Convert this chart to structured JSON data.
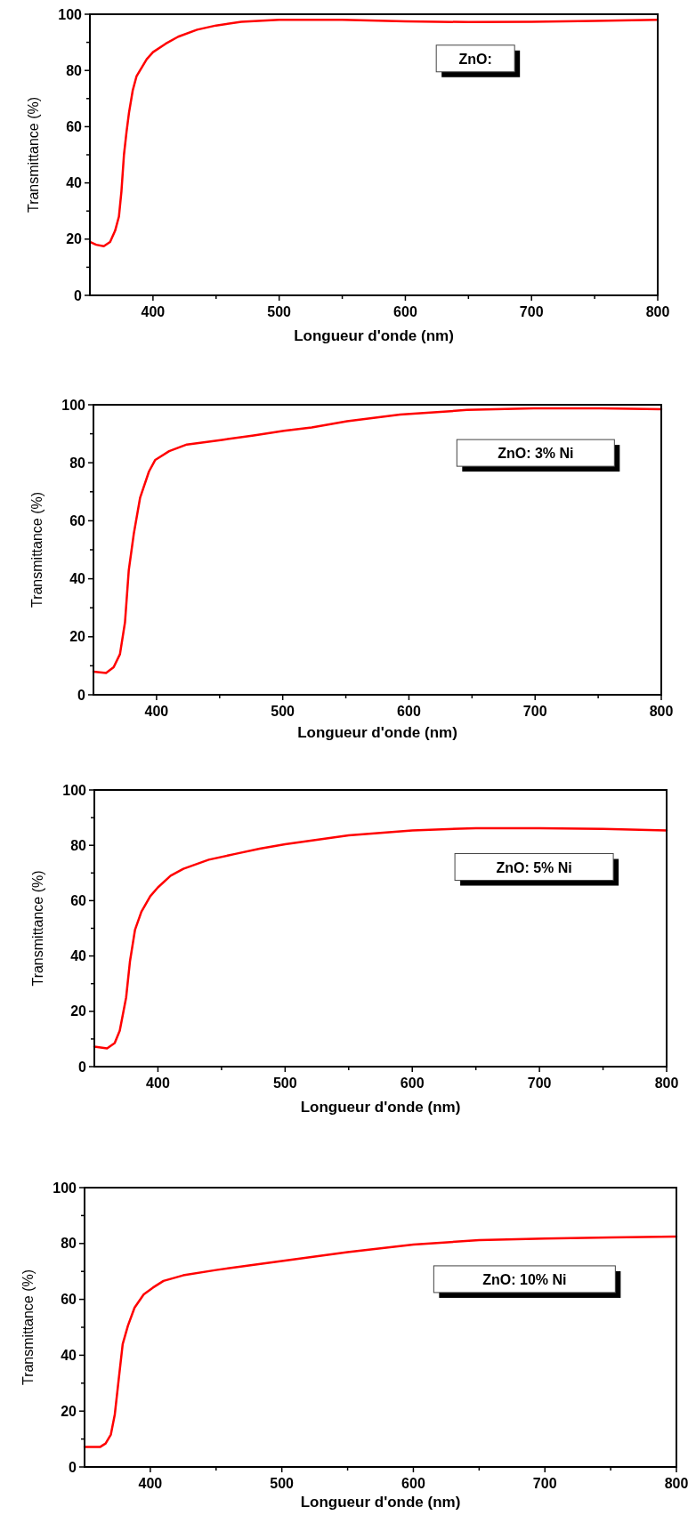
{
  "chart_data": [
    {
      "type": "line",
      "xlabel": "Longueur d'onde (nm)",
      "ylabel": "Transmittance (%)",
      "annotations": [
        "ZnO:"
      ],
      "xlim": [
        350,
        800
      ],
      "ylim": [
        0,
        100
      ],
      "xticks": [
        400,
        {
          "value": 450,
          "label": null
        },
        500,
        {
          "value": 550,
          "label": null
        },
        600,
        {
          "value": 650,
          "label": null
        },
        700,
        {
          "value": 750,
          "label": null
        },
        800
      ],
      "yticks": [
        0,
        {
          "value": 10,
          "label": null
        },
        20,
        {
          "value": 30,
          "label": null
        },
        40,
        {
          "value": 50,
          "label": null
        },
        60,
        {
          "value": 70,
          "label": null
        },
        80,
        {
          "value": 90,
          "label": null
        },
        100
      ],
      "grid": false,
      "marker": "none",
      "line_style": "solid",
      "series": [
        {
          "color": "#ff0000",
          "x": [
            350,
            355,
            361,
            366,
            370,
            373,
            375,
            377,
            379,
            381,
            384,
            387,
            391,
            395,
            400,
            410,
            420,
            435,
            450,
            470,
            500,
            550,
            600,
            650,
            700,
            750,
            800
          ],
          "values": [
            19,
            18,
            17.5,
            19,
            23,
            28,
            37,
            50,
            58,
            65,
            73,
            78,
            81,
            84,
            86.5,
            89.5,
            92,
            94.5,
            96,
            97.3,
            98,
            98,
            97.5,
            97.2,
            97.3,
            97.6,
            98
          ]
        }
      ]
    },
    {
      "type": "line",
      "xlabel": "Longueur d'onde (nm)",
      "ylabel": "Transmittance (%)",
      "annotations": [
        "ZnO: 3% Ni"
      ],
      "xlim": [
        350,
        800
      ],
      "ylim": [
        0,
        100
      ],
      "xticks": [
        400,
        {
          "value": 450,
          "label": null
        },
        500,
        {
          "value": 550,
          "label": null
        },
        600,
        {
          "value": 650,
          "label": null
        },
        700,
        {
          "value": 750,
          "label": null
        },
        800
      ],
      "yticks": [
        0,
        {
          "value": 10,
          "label": null
        },
        20,
        {
          "value": 30,
          "label": null
        },
        40,
        {
          "value": 50,
          "label": null
        },
        60,
        {
          "value": 70,
          "label": null
        },
        80,
        {
          "value": 90,
          "label": null
        },
        100
      ],
      "grid": false,
      "marker": "none",
      "line_style": "solid",
      "series": [
        {
          "color": "#ff0000",
          "x": [
            350,
            360,
            366,
            371,
            375,
            378,
            382,
            387,
            394,
            399,
            410,
            424,
            452,
            477,
            501,
            523,
            551,
            593,
            646,
            699,
            752,
            800
          ],
          "values": [
            8,
            7.5,
            9.5,
            14,
            25,
            43,
            55.6,
            68,
            77,
            81,
            84,
            86.3,
            87.9,
            89.4,
            91,
            92.2,
            94.3,
            96.6,
            98.2,
            98.8,
            98.8,
            98.5
          ]
        }
      ]
    },
    {
      "type": "line",
      "xlabel": "Longueur d'onde (nm)",
      "ylabel": "Transmittance (%)",
      "annotations": [
        "ZnO: 5% Ni"
      ],
      "xlim": [
        350,
        800
      ],
      "ylim": [
        0,
        100
      ],
      "xticks": [
        400,
        {
          "value": 450,
          "label": null
        },
        500,
        {
          "value": 550,
          "label": null
        },
        600,
        {
          "value": 650,
          "label": null
        },
        700,
        {
          "value": 750,
          "label": null
        },
        800
      ],
      "yticks": [
        0,
        {
          "value": 10,
          "label": null
        },
        20,
        {
          "value": 30,
          "label": null
        },
        40,
        {
          "value": 50,
          "label": null
        },
        60,
        {
          "value": 70,
          "label": null
        },
        80,
        {
          "value": 90,
          "label": null
        },
        100
      ],
      "grid": false,
      "marker": "none",
      "line_style": "solid",
      "series": [
        {
          "color": "#ff0000",
          "x": [
            350,
            360,
            366,
            370,
            375,
            378,
            382,
            387,
            394,
            400,
            410,
            420,
            440,
            460,
            480,
            500,
            550,
            600,
            650,
            700,
            750,
            800
          ],
          "values": [
            7.2,
            6.6,
            8.5,
            13,
            25,
            38,
            49.5,
            56,
            61.6,
            64.8,
            69,
            71.5,
            74.8,
            76.8,
            78.8,
            80.4,
            83.6,
            85.4,
            86.2,
            86.2,
            85.9,
            85.4
          ]
        }
      ]
    },
    {
      "type": "line",
      "xlabel": "Longueur d'onde (nm)",
      "ylabel": "Transmittance (%)",
      "annotations": [
        "ZnO: 10% Ni"
      ],
      "xlim": [
        350,
        800
      ],
      "ylim": [
        0,
        100
      ],
      "xticks": [
        400,
        {
          "value": 450,
          "label": null
        },
        500,
        {
          "value": 550,
          "label": null
        },
        600,
        {
          "value": 650,
          "label": null
        },
        700,
        {
          "value": 750,
          "label": null
        },
        800
      ],
      "yticks": [
        0,
        {
          "value": 10,
          "label": null
        },
        20,
        {
          "value": 30,
          "label": null
        },
        40,
        {
          "value": 50,
          "label": null
        },
        60,
        {
          "value": 70,
          "label": null
        },
        80,
        {
          "value": 90,
          "label": null
        },
        100
      ],
      "grid": false,
      "marker": "none",
      "line_style": "solid",
      "series": [
        {
          "color": "#ff0000",
          "x": [
            350,
            362,
            366,
            370,
            373,
            376,
            379,
            383,
            388,
            395,
            402,
            410,
            425,
            450,
            475,
            500,
            550,
            600,
            650,
            700,
            750,
            800
          ],
          "values": [
            7.2,
            7.2,
            8.4,
            11.6,
            18.8,
            31.5,
            44,
            50.6,
            57,
            61.8,
            64.2,
            66.6,
            68.6,
            70.5,
            72.1,
            73.7,
            76.9,
            79.6,
            81.2,
            81.8,
            82.2,
            82.5
          ]
        }
      ]
    }
  ]
}
